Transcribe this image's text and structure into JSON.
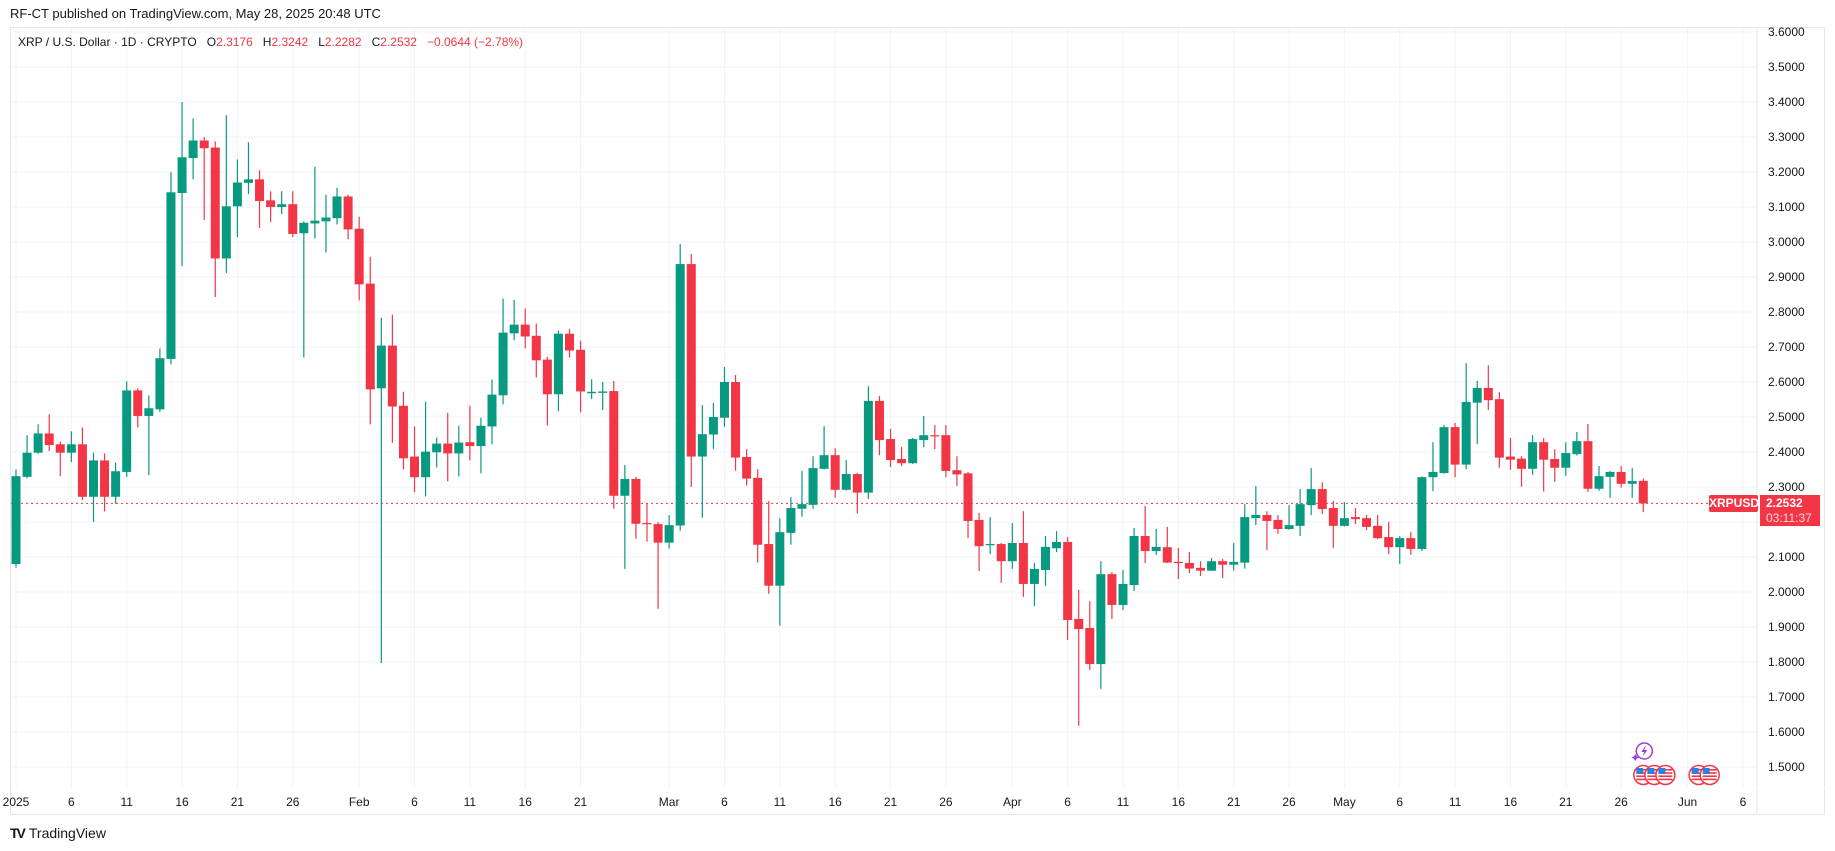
{
  "publisher": "RF-CT published on TradingView.com, May 28, 2025 20:48 UTC",
  "legend": {
    "symbol": "XRP / U.S. Dollar · 1D · CRYPTO",
    "o_label": "O",
    "o": "2.3176",
    "h_label": "H",
    "h": "2.3242",
    "l_label": "L",
    "l": "2.2282",
    "c_label": "C",
    "c": "2.2532",
    "change": "−0.0644 (−2.78%)"
  },
  "last_price": {
    "ticker": "XRPUSD",
    "price": "2.2532",
    "countdown": "03:11:37"
  },
  "brand": "TradingView",
  "colors": {
    "up": "#089981",
    "down": "#F23645",
    "grid": "#f0f3fa",
    "event": "#9c3ce0"
  },
  "events": [
    {
      "type": "lightning-icon",
      "day_index": 147
    },
    {
      "type": "us-flag-icon",
      "day_index": 147
    },
    {
      "type": "us-flag-icon",
      "day_index": 148
    },
    {
      "type": "us-flag-icon",
      "day_index": 149
    },
    {
      "type": "us-flag-icon",
      "day_index": 152
    },
    {
      "type": "us-flag-icon",
      "day_index": 153
    }
  ],
  "chart_data": {
    "type": "candlestick",
    "title": "XRP / U.S. Dollar · 1D · CRYPTO",
    "start_date": "2025-01-01",
    "interval": "1D",
    "ylim": [
      1.45,
      3.62
    ],
    "y_ticks": [
      "3.6000",
      "3.5000",
      "3.4000",
      "3.3000",
      "3.2000",
      "3.1000",
      "3.0000",
      "2.9000",
      "2.8000",
      "2.7000",
      "2.6000",
      "2.5000",
      "2.4000",
      "2.3000",
      "2.2000",
      "2.1000",
      "2.0000",
      "1.9000",
      "1.8000",
      "1.7000",
      "1.6000",
      "1.5000"
    ],
    "x_ticks": [
      {
        "label": "2025",
        "day": 0
      },
      {
        "label": "6",
        "day": 5
      },
      {
        "label": "11",
        "day": 10
      },
      {
        "label": "16",
        "day": 15
      },
      {
        "label": "21",
        "day": 20
      },
      {
        "label": "26",
        "day": 25
      },
      {
        "label": "Feb",
        "day": 31
      },
      {
        "label": "6",
        "day": 36
      },
      {
        "label": "11",
        "day": 41
      },
      {
        "label": "16",
        "day": 46
      },
      {
        "label": "21",
        "day": 51
      },
      {
        "label": "Mar",
        "day": 59
      },
      {
        "label": "6",
        "day": 64
      },
      {
        "label": "11",
        "day": 69
      },
      {
        "label": "16",
        "day": 74
      },
      {
        "label": "21",
        "day": 79
      },
      {
        "label": "26",
        "day": 84
      },
      {
        "label": "Apr",
        "day": 90
      },
      {
        "label": "6",
        "day": 95
      },
      {
        "label": "11",
        "day": 100
      },
      {
        "label": "16",
        "day": 105
      },
      {
        "label": "21",
        "day": 110
      },
      {
        "label": "26",
        "day": 115
      },
      {
        "label": "May",
        "day": 120
      },
      {
        "label": "6",
        "day": 125
      },
      {
        "label": "11",
        "day": 130
      },
      {
        "label": "16",
        "day": 135
      },
      {
        "label": "21",
        "day": 140
      },
      {
        "label": "26",
        "day": 145
      },
      {
        "label": "Jun",
        "day": 151
      },
      {
        "label": "6",
        "day": 156
      }
    ],
    "last_close": 2.2532,
    "ohlc": [
      [
        2.08,
        2.35,
        2.07,
        2.331
      ],
      [
        2.329,
        2.448,
        2.325,
        2.398
      ],
      [
        2.398,
        2.479,
        2.395,
        2.453
      ],
      [
        2.453,
        2.508,
        2.403,
        2.42
      ],
      [
        2.422,
        2.43,
        2.331,
        2.398
      ],
      [
        2.398,
        2.459,
        2.371,
        2.422
      ],
      [
        2.422,
        2.47,
        2.263,
        2.272
      ],
      [
        2.272,
        2.398,
        2.2,
        2.376
      ],
      [
        2.376,
        2.396,
        2.23,
        2.272
      ],
      [
        2.272,
        2.37,
        2.252,
        2.345
      ],
      [
        2.343,
        2.602,
        2.329,
        2.576
      ],
      [
        2.576,
        2.582,
        2.47,
        2.503
      ],
      [
        2.503,
        2.562,
        2.334,
        2.525
      ],
      [
        2.522,
        2.696,
        2.514,
        2.668
      ],
      [
        2.666,
        3.2,
        2.65,
        3.142
      ],
      [
        3.14,
        3.4,
        2.931,
        3.242
      ],
      [
        3.24,
        3.353,
        3.179,
        3.29
      ],
      [
        3.29,
        3.3,
        3.063,
        3.268
      ],
      [
        3.27,
        3.288,
        2.843,
        2.953
      ],
      [
        2.953,
        3.362,
        2.911,
        3.102
      ],
      [
        3.102,
        3.236,
        3.014,
        3.17
      ],
      [
        3.169,
        3.285,
        3.137,
        3.179
      ],
      [
        3.179,
        3.205,
        3.04,
        3.117
      ],
      [
        3.119,
        3.145,
        3.057,
        3.1
      ],
      [
        3.1,
        3.145,
        3.08,
        3.108
      ],
      [
        3.108,
        3.145,
        3.014,
        3.023
      ],
      [
        3.025,
        3.059,
        2.67,
        3.055
      ],
      [
        3.053,
        3.215,
        3.01,
        3.061
      ],
      [
        3.059,
        3.135,
        2.97,
        3.07
      ],
      [
        3.068,
        3.155,
        3.05,
        3.13
      ],
      [
        3.13,
        3.135,
        3.008,
        3.036
      ],
      [
        3.038,
        3.072,
        2.833,
        2.879
      ],
      [
        2.881,
        2.958,
        2.479,
        2.579
      ],
      [
        2.582,
        2.784,
        1.797,
        2.704
      ],
      [
        2.704,
        2.792,
        2.426,
        2.53
      ],
      [
        2.532,
        2.572,
        2.35,
        2.382
      ],
      [
        2.387,
        2.473,
        2.285,
        2.328
      ],
      [
        2.328,
        2.544,
        2.273,
        2.401
      ],
      [
        2.399,
        2.441,
        2.356,
        2.424
      ],
      [
        2.424,
        2.512,
        2.316,
        2.396
      ],
      [
        2.396,
        2.475,
        2.33,
        2.427
      ],
      [
        2.428,
        2.532,
        2.376,
        2.417
      ],
      [
        2.417,
        2.498,
        2.339,
        2.475
      ],
      [
        2.473,
        2.607,
        2.422,
        2.564
      ],
      [
        2.562,
        2.838,
        2.536,
        2.741
      ],
      [
        2.739,
        2.835,
        2.719,
        2.764
      ],
      [
        2.764,
        2.81,
        2.696,
        2.73
      ],
      [
        2.732,
        2.767,
        2.613,
        2.662
      ],
      [
        2.664,
        2.672,
        2.476,
        2.565
      ],
      [
        2.565,
        2.747,
        2.516,
        2.738
      ],
      [
        2.738,
        2.752,
        2.67,
        2.69
      ],
      [
        2.692,
        2.718,
        2.513,
        2.573
      ],
      [
        2.568,
        2.608,
        2.551,
        2.572
      ],
      [
        2.569,
        2.6,
        2.52,
        2.573
      ],
      [
        2.574,
        2.603,
        2.238,
        2.275
      ],
      [
        2.275,
        2.363,
        2.066,
        2.323
      ],
      [
        2.323,
        2.329,
        2.152,
        2.195
      ],
      [
        2.197,
        2.253,
        2.144,
        2.195
      ],
      [
        2.194,
        2.2,
        1.952,
        2.141
      ],
      [
        2.141,
        2.22,
        2.124,
        2.191
      ],
      [
        2.19,
        2.994,
        2.175,
        2.937
      ],
      [
        2.937,
        2.966,
        2.3,
        2.387
      ],
      [
        2.387,
        2.534,
        2.212,
        2.451
      ],
      [
        2.45,
        2.54,
        2.409,
        2.5
      ],
      [
        2.498,
        2.643,
        2.472,
        2.6
      ],
      [
        2.6,
        2.62,
        2.347,
        2.384
      ],
      [
        2.386,
        2.408,
        2.304,
        2.324
      ],
      [
        2.326,
        2.351,
        2.084,
        2.135
      ],
      [
        2.137,
        2.26,
        1.995,
        2.018
      ],
      [
        2.018,
        2.211,
        1.904,
        2.171
      ],
      [
        2.169,
        2.271,
        2.135,
        2.24
      ],
      [
        2.238,
        2.346,
        2.215,
        2.251
      ],
      [
        2.249,
        2.388,
        2.238,
        2.354
      ],
      [
        2.352,
        2.474,
        2.35,
        2.391
      ],
      [
        2.391,
        2.411,
        2.269,
        2.292
      ],
      [
        2.292,
        2.377,
        2.29,
        2.337
      ],
      [
        2.337,
        2.34,
        2.224,
        2.284
      ],
      [
        2.284,
        2.588,
        2.266,
        2.546
      ],
      [
        2.546,
        2.56,
        2.391,
        2.434
      ],
      [
        2.437,
        2.466,
        2.357,
        2.377
      ],
      [
        2.38,
        2.414,
        2.36,
        2.368
      ],
      [
        2.368,
        2.44,
        2.366,
        2.437
      ],
      [
        2.434,
        2.503,
        2.414,
        2.448
      ],
      [
        2.448,
        2.477,
        2.408,
        2.445
      ],
      [
        2.448,
        2.477,
        2.328,
        2.346
      ],
      [
        2.348,
        2.388,
        2.303,
        2.336
      ],
      [
        2.339,
        2.343,
        2.154,
        2.203
      ],
      [
        2.206,
        2.226,
        2.06,
        2.131
      ],
      [
        2.135,
        2.214,
        2.108,
        2.137
      ],
      [
        2.137,
        2.14,
        2.026,
        2.088
      ],
      [
        2.088,
        2.197,
        2.066,
        2.14
      ],
      [
        2.14,
        2.231,
        1.986,
        2.023
      ],
      [
        2.023,
        2.083,
        1.96,
        2.066
      ],
      [
        2.063,
        2.16,
        2.017,
        2.129
      ],
      [
        2.125,
        2.174,
        2.114,
        2.143
      ],
      [
        2.143,
        2.157,
        1.863,
        1.92
      ],
      [
        1.923,
        2.006,
        1.618,
        1.894
      ],
      [
        1.897,
        1.974,
        1.777,
        1.794
      ],
      [
        1.794,
        2.088,
        1.723,
        2.051
      ],
      [
        2.051,
        2.057,
        1.923,
        1.963
      ],
      [
        1.963,
        2.063,
        1.948,
        2.023
      ],
      [
        2.02,
        2.183,
        2.003,
        2.16
      ],
      [
        2.16,
        2.246,
        2.083,
        2.117
      ],
      [
        2.117,
        2.18,
        2.106,
        2.129
      ],
      [
        2.128,
        2.186,
        2.083,
        2.084
      ],
      [
        2.086,
        2.126,
        2.037,
        2.084
      ],
      [
        2.083,
        2.114,
        2.054,
        2.067
      ],
      [
        2.069,
        2.088,
        2.046,
        2.061
      ],
      [
        2.061,
        2.097,
        2.06,
        2.088
      ],
      [
        2.088,
        2.094,
        2.04,
        2.078
      ],
      [
        2.078,
        2.14,
        2.061,
        2.086
      ],
      [
        2.084,
        2.251,
        2.067,
        2.214
      ],
      [
        2.211,
        2.303,
        2.191,
        2.22
      ],
      [
        2.22,
        2.231,
        2.12,
        2.203
      ],
      [
        2.206,
        2.22,
        2.166,
        2.18
      ],
      [
        2.18,
        2.248,
        2.178,
        2.191
      ],
      [
        2.189,
        2.294,
        2.16,
        2.251
      ],
      [
        2.248,
        2.354,
        2.22,
        2.294
      ],
      [
        2.294,
        2.314,
        2.223,
        2.237
      ],
      [
        2.24,
        2.26,
        2.126,
        2.189
      ],
      [
        2.189,
        2.257,
        2.187,
        2.211
      ],
      [
        2.214,
        2.24,
        2.194,
        2.208
      ],
      [
        2.211,
        2.22,
        2.177,
        2.186
      ],
      [
        2.189,
        2.22,
        2.151,
        2.154
      ],
      [
        2.157,
        2.2,
        2.108,
        2.128
      ],
      [
        2.128,
        2.16,
        2.08,
        2.154
      ],
      [
        2.154,
        2.171,
        2.106,
        2.123
      ],
      [
        2.123,
        2.33,
        2.117,
        2.328
      ],
      [
        2.328,
        2.428,
        2.288,
        2.343
      ],
      [
        2.34,
        2.477,
        2.338,
        2.471
      ],
      [
        2.471,
        2.483,
        2.328,
        2.364
      ],
      [
        2.364,
        2.654,
        2.351,
        2.543
      ],
      [
        2.541,
        2.603,
        2.423,
        2.583
      ],
      [
        2.583,
        2.648,
        2.52,
        2.548
      ],
      [
        2.551,
        2.571,
        2.355,
        2.384
      ],
      [
        2.387,
        2.44,
        2.349,
        2.378
      ],
      [
        2.381,
        2.388,
        2.301,
        2.352
      ],
      [
        2.352,
        2.448,
        2.335,
        2.428
      ],
      [
        2.428,
        2.44,
        2.287,
        2.378
      ],
      [
        2.38,
        2.408,
        2.315,
        2.355
      ],
      [
        2.355,
        2.428,
        2.332,
        2.397
      ],
      [
        2.394,
        2.457,
        2.39,
        2.431
      ],
      [
        2.431,
        2.48,
        2.286,
        2.295
      ],
      [
        2.295,
        2.36,
        2.289,
        2.331
      ],
      [
        2.329,
        2.346,
        2.269,
        2.343
      ],
      [
        2.343,
        2.36,
        2.298,
        2.309
      ],
      [
        2.309,
        2.354,
        2.269,
        2.317
      ],
      [
        2.3176,
        2.3242,
        2.2282,
        2.2532
      ]
    ]
  }
}
